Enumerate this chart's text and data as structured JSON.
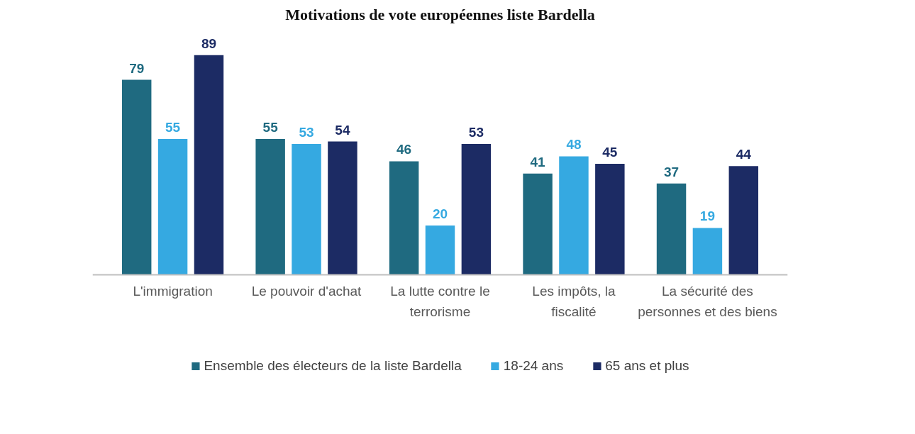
{
  "chart_data": {
    "type": "bar",
    "title": "Motivations de vote européennes liste Bardella",
    "categories": [
      "L'immigration",
      "Le pouvoir d'achat",
      "La lutte contre le terrorisme",
      "Les impôts, la fiscalité",
      "La sécurité des personnes et des biens"
    ],
    "series": [
      {
        "name": "Ensemble des électeurs de la liste Bardella",
        "color": "#1f6a80",
        "values": [
          79,
          55,
          46,
          41,
          37
        ]
      },
      {
        "name": "18-24 ans",
        "color": "#35a9e1",
        "values": [
          55,
          53,
          20,
          48,
          19
        ]
      },
      {
        "name": "65 ans et plus",
        "color": "#1c2b64",
        "values": [
          89,
          54,
          53,
          45,
          44
        ]
      }
    ],
    "data_labels": true,
    "legend": "bottom"
  }
}
